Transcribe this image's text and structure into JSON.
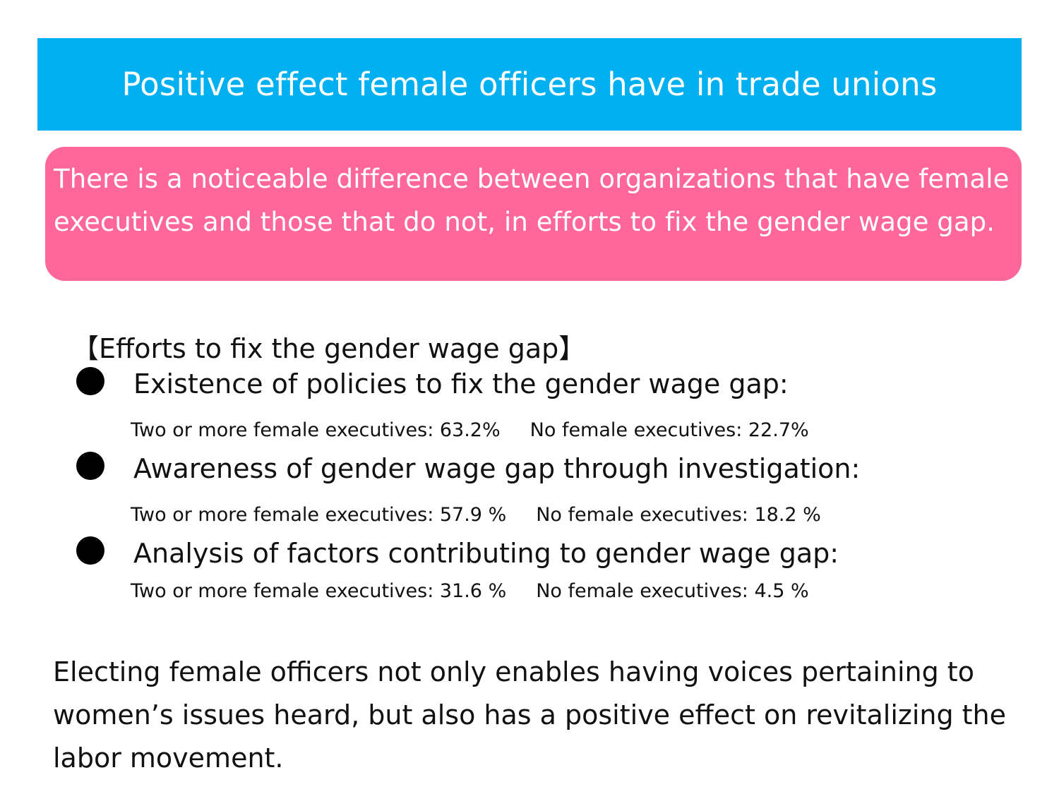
{
  "title": "Positive effect female officers have in trade unions",
  "summary": "There is a noticeable difference between organizations that have female executives and those that do not, in efforts to fix the gender wage gap.",
  "section_heading": "【Efforts to fix the gender wage gap】",
  "items": [
    {
      "label": "Existence of policies to fix the gender wage gap:",
      "two_or_more": "Two or more female executives: 63.2%",
      "none": "No female executives: 22.7%"
    },
    {
      "label": "Awareness of gender wage gap through investigation:",
      "two_or_more": "Two or more female executives: 57.9 %",
      "none": "No female executives: 18.2 %"
    },
    {
      "label": "Analysis of factors contributing to gender wage gap:",
      "two_or_more": "Two or more female executives: 31.6 %",
      "none": "No female executives: 4.5 %"
    }
  ],
  "conclusion": "Electing female officers not only enables having voices pertaining to women’s issues heard, but also has a positive effect on revitalizing the labor movement.",
  "colors": {
    "banner": "#00b0f0",
    "summary_box": "#ff6699",
    "text": "#111111"
  }
}
